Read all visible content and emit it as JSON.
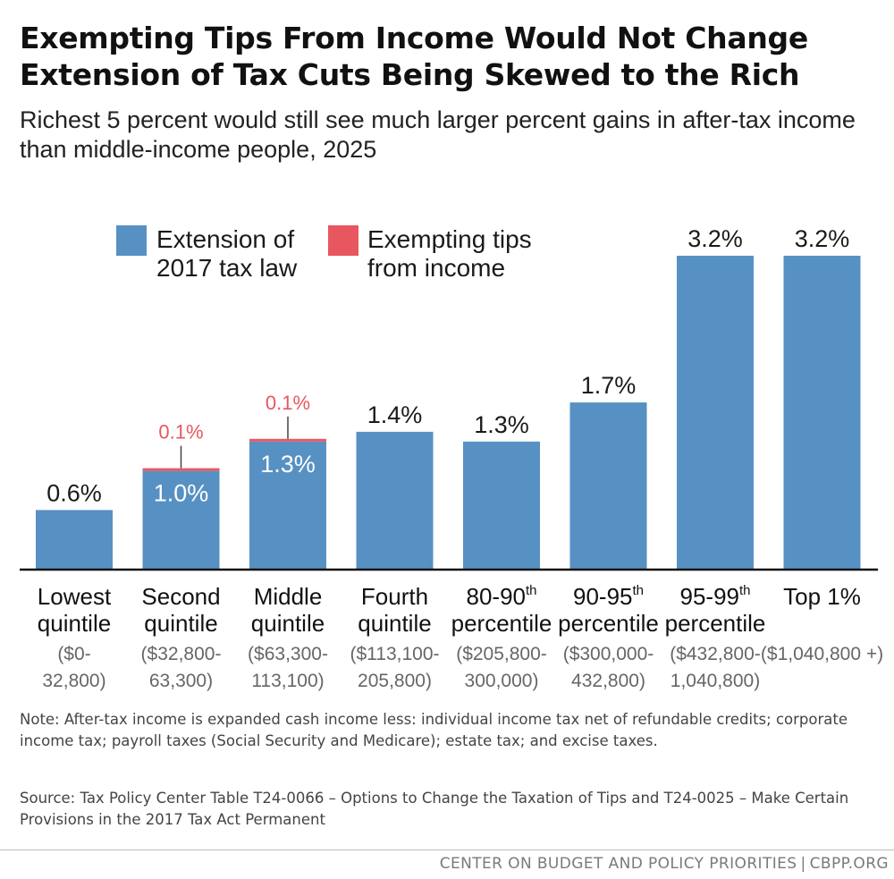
{
  "title": "Exempting Tips From Income Would Not Change Extension of Tax Cuts Being Skewed to the Rich",
  "subtitle": "Richest 5 percent would still see much larger percent gains in after-tax income than middle-income people, 2025",
  "colors": {
    "base": "#5791c3",
    "tips": "#e8575f",
    "tick_label": "#666666",
    "axis": "#111111"
  },
  "chart_data": {
    "type": "bar",
    "stacked": true,
    "ylim": [
      0,
      3.5
    ],
    "legend_position": "top-left",
    "categories": [
      {
        "name": [
          "Lowest",
          "quintile"
        ],
        "range": [
          "($0-",
          "32,800)"
        ]
      },
      {
        "name": [
          "Second",
          "quintile"
        ],
        "range": [
          "($32,800-",
          "63,300)"
        ]
      },
      {
        "name": [
          "Middle",
          "quintile"
        ],
        "range": [
          "($63,300-",
          "113,100)"
        ]
      },
      {
        "name": [
          "Fourth",
          "quintile"
        ],
        "range": [
          "($113,100-",
          "205,800)"
        ]
      },
      {
        "name": [
          "80-90",
          "percentile"
        ],
        "sup": "th",
        "range": [
          "($205,800-",
          "300,000)"
        ]
      },
      {
        "name": [
          "90-95",
          "percentile"
        ],
        "sup": "th",
        "range": [
          "($300,000-",
          "432,800)"
        ]
      },
      {
        "name": [
          "95-99",
          "percentile"
        ],
        "sup": "th",
        "range": [
          "($432,800-",
          "1,040,800)"
        ]
      },
      {
        "name": [
          "Top 1%"
        ],
        "range": [
          "($1,040,800 +)"
        ]
      }
    ],
    "series": [
      {
        "name": "Extension of 2017 tax law",
        "legend_lines": [
          "Extension of",
          "2017 tax law"
        ],
        "values": [
          0.6,
          1.0,
          1.3,
          1.4,
          1.3,
          1.7,
          3.2,
          3.2
        ],
        "labels": [
          "0.6%",
          "1.0%",
          "1.3%",
          "1.4%",
          "1.3%",
          "1.7%",
          "3.2%",
          "3.2%"
        ]
      },
      {
        "name": "Exempting tips from income",
        "legend_lines": [
          "Exempting tips",
          "from income"
        ],
        "values": [
          0,
          0.1,
          0.1,
          0,
          0,
          0,
          0,
          0
        ],
        "labels": [
          "",
          "0.1%",
          "0.1%",
          "",
          "",
          "",
          "",
          ""
        ]
      }
    ]
  },
  "note": "Note: After-tax income is expanded cash income less: individual income tax net of refundable credits; corporate income tax; payroll taxes (Social Security and Medicare); estate tax; and excise taxes.",
  "source": "Source: Tax Policy Center Table T24-0066 – Options to Change the Taxation of Tips and T24-0025 – Make Certain Provisions in the 2017 Tax Act Permanent",
  "footer": {
    "org": "CENTER ON BUDGET AND POLICY PRIORITIES",
    "separator": "|",
    "site": "CBPP.ORG"
  }
}
